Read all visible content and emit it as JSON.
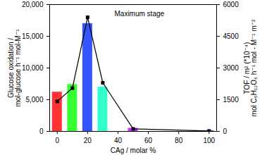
{
  "chart_data": {
    "type": "bar",
    "annotations": [
      "Maximum stage"
    ],
    "x": [
      0,
      10,
      20,
      30,
      50,
      100
    ],
    "xlabel": "CAg / molar %",
    "ylabel": "Glucose oxidation /\nmol-glucose h⁻¹ mol-M⁻¹",
    "y2label": "TOF / m² (*10⁻⁴)\nmol C₆H₁₂O₆ h⁻¹ mol - M⁻¹ m⁻²",
    "xlim": [
      -5,
      105
    ],
    "xticks": [
      0,
      20,
      40,
      60,
      80,
      100
    ],
    "ylim": [
      0,
      20000
    ],
    "yticks": [
      0,
      5000,
      10000,
      15000,
      20000
    ],
    "y2lim": [
      0,
      6000
    ],
    "y2ticks": [
      0,
      1500,
      3000,
      4500,
      6000
    ],
    "series": [
      {
        "type": "bar",
        "colors": [
          "#ff3333",
          "#33ff33",
          "#3355ff",
          "#33ffcc",
          "#cc33ff",
          "#3333cc"
        ],
        "values": [
          6200,
          7400,
          17000,
          7000,
          500,
          100
        ]
      },
      {
        "type": "line",
        "axis": "y2",
        "color": "#000000",
        "marker": "square",
        "values": [
          1420,
          2050,
          5400,
          2300,
          120,
          20
        ]
      }
    ]
  }
}
